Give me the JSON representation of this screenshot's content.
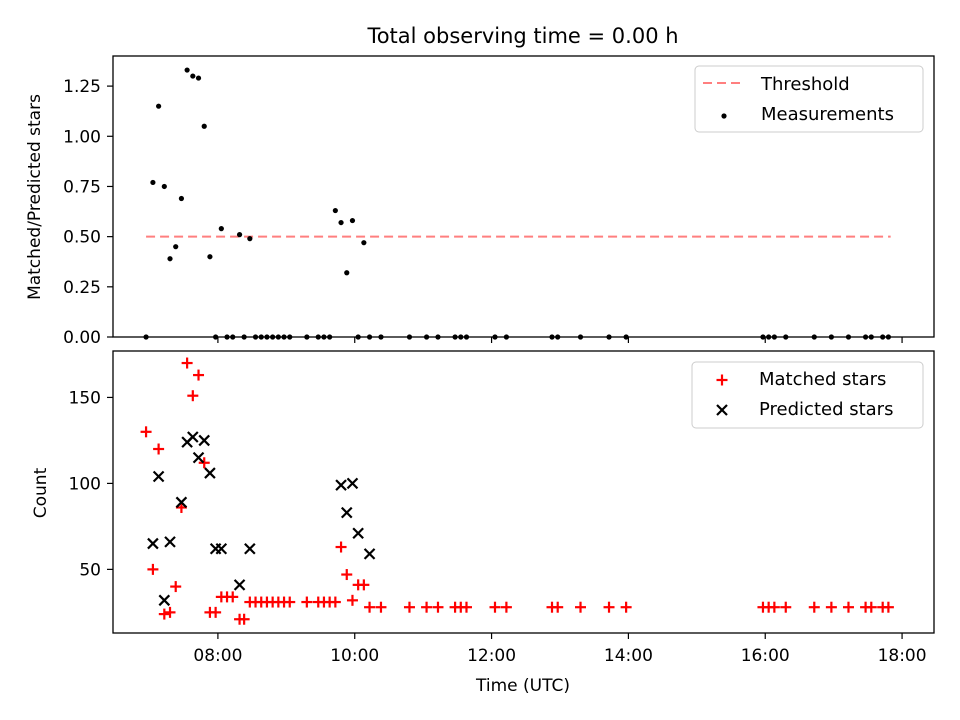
{
  "chart_data": [
    {
      "type": "scatter",
      "title": "Total observing time = 0.00 h",
      "ylabel": "Matched/Predicted stars",
      "xlabel": "",
      "xlim": [
        "06:28",
        "18:28"
      ],
      "ylim": [
        0,
        1.4
      ],
      "yticks": [
        "0.00",
        "0.25",
        "0.50",
        "0.75",
        "1.00",
        "1.25"
      ],
      "legend": "top-right",
      "grid": false,
      "threshold": {
        "name": "Threshold",
        "value": 0.5,
        "x_range": [
          "06:57",
          "17:50"
        ],
        "color": "#ff7f7f",
        "style": "dashed"
      },
      "series": [
        {
          "name": "Measurements",
          "color": "#000000",
          "marker": "dot",
          "x": [
            "06:57",
            "07:03",
            "07:08",
            "07:13",
            "07:18",
            "07:23",
            "07:28",
            "07:33",
            "07:38",
            "07:43",
            "07:48",
            "07:53",
            "07:58",
            "08:03",
            "08:08",
            "08:13",
            "08:19",
            "08:23",
            "08:28",
            "08:33",
            "08:38",
            "08:43",
            "08:48",
            "08:53",
            "08:58",
            "09:03",
            "09:18",
            "09:28",
            "09:33",
            "09:38",
            "09:43",
            "09:48",
            "09:53",
            "09:58",
            "10:03",
            "10:08",
            "10:13",
            "10:23",
            "10:48",
            "11:03",
            "11:13",
            "11:28",
            "11:33",
            "11:38",
            "12:03",
            "12:13",
            "12:53",
            "12:58",
            "13:18",
            "13:43",
            "13:58",
            "15:58",
            "16:03",
            "16:08",
            "16:18",
            "16:43",
            "16:58",
            "17:13",
            "17:28",
            "17:33",
            "17:43",
            "17:48"
          ],
          "y": [
            0.0,
            0.77,
            1.15,
            0.75,
            0.39,
            0.45,
            0.69,
            1.33,
            1.3,
            1.29,
            1.05,
            0.4,
            0.0,
            0.54,
            0.0,
            0.0,
            0.51,
            0.0,
            0.49,
            0.0,
            0.0,
            0.0,
            0.0,
            0.0,
            0.0,
            0.0,
            0.0,
            0.0,
            0.0,
            0.0,
            0.63,
            0.57,
            0.32,
            0.58,
            0.0,
            0.47,
            0.0,
            0.0,
            0.0,
            0.0,
            0.0,
            0.0,
            0.0,
            0.0,
            0.0,
            0.0,
            0.0,
            0.0,
            0.0,
            0.0,
            0.0,
            0.0,
            0.0,
            0.0,
            0.0,
            0.0,
            0.0,
            0.0,
            0.0,
            0.0,
            0.0,
            0.0
          ]
        }
      ]
    },
    {
      "type": "scatter",
      "title": "",
      "ylabel": "Count",
      "xlabel": "Time (UTC)",
      "xlim": [
        "06:28",
        "18:28"
      ],
      "ylim": [
        13,
        177
      ],
      "yticks": [
        "50",
        "100",
        "150"
      ],
      "xticks": [
        "08:00",
        "10:00",
        "12:00",
        "14:00",
        "16:00",
        "18:00"
      ],
      "legend": "top-right",
      "grid": false,
      "series": [
        {
          "name": "Matched stars",
          "color": "#ff0000",
          "marker": "plus",
          "x": [
            "06:57",
            "07:03",
            "07:08",
            "07:13",
            "07:18",
            "07:23",
            "07:28",
            "07:33",
            "07:38",
            "07:43",
            "07:48",
            "07:53",
            "07:58",
            "08:03",
            "08:08",
            "08:13",
            "08:19",
            "08:23",
            "08:28",
            "08:33",
            "08:38",
            "08:43",
            "08:48",
            "08:53",
            "08:58",
            "09:03",
            "09:18",
            "09:28",
            "09:33",
            "09:38",
            "09:43",
            "09:48",
            "09:53",
            "09:58",
            "10:03",
            "10:08",
            "10:13",
            "10:23",
            "10:48",
            "11:03",
            "11:13",
            "11:28",
            "11:33",
            "11:38",
            "12:03",
            "12:13",
            "12:53",
            "12:58",
            "13:18",
            "13:43",
            "13:58",
            "15:58",
            "16:03",
            "16:08",
            "16:18",
            "16:43",
            "16:58",
            "17:13",
            "17:28",
            "17:33",
            "17:43",
            "17:48"
          ],
          "y": [
            130,
            50,
            120,
            24,
            25,
            40,
            86,
            170,
            151,
            163,
            112,
            25,
            25,
            34,
            34,
            34,
            21,
            21,
            31,
            31,
            31,
            31,
            31,
            31,
            31,
            31,
            31,
            31,
            31,
            31,
            31,
            63,
            47,
            32,
            41,
            41,
            28,
            28,
            28,
            28,
            28,
            28,
            28,
            28,
            28,
            28,
            28,
            28,
            28,
            28,
            28,
            28,
            28,
            28,
            28,
            28,
            28,
            28,
            28,
            28,
            28,
            28
          ]
        },
        {
          "name": "Predicted stars",
          "color": "#000000",
          "marker": "cross",
          "x": [
            "07:03",
            "07:08",
            "07:13",
            "07:18",
            "07:28",
            "07:33",
            "07:38",
            "07:43",
            "07:48",
            "07:53",
            "07:58",
            "08:03",
            "08:19",
            "08:28",
            "09:48",
            "09:53",
            "09:58",
            "10:03",
            "10:13"
          ],
          "y": [
            65,
            104,
            32,
            66,
            89,
            124,
            127,
            115,
            125,
            106,
            62,
            62,
            41,
            62,
            99,
            83,
            100,
            71,
            59
          ]
        }
      ]
    }
  ]
}
